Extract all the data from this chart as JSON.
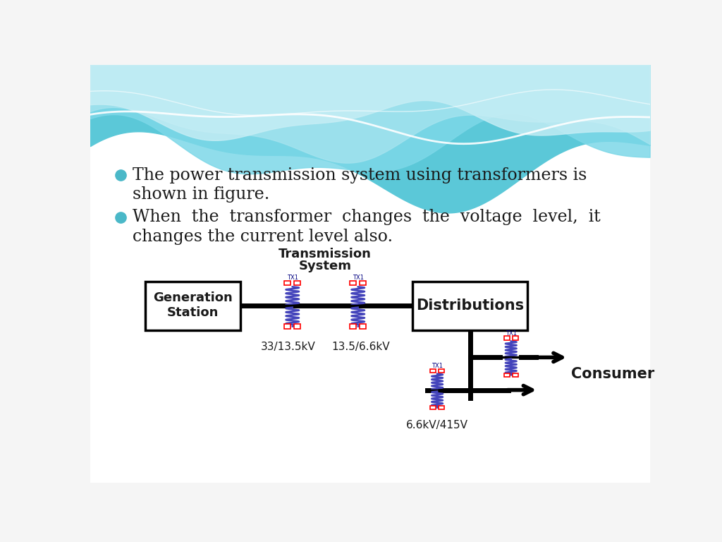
{
  "bg_color": "#f5f5f5",
  "wave_color1": "#5bc8d8",
  "wave_color2": "#7dd8e8",
  "wave_color3": "#a8e4ef",
  "wave_color4": "#c8eef5",
  "bullet_color": "#4ab8c8",
  "text_color": "#1a1a1a",
  "bullet1_line1": "The power transmission system using transformers is",
  "bullet1_line2": "shown in figure.",
  "bullet2_line1": "When  the  transformer  changes  the  voltage  level,  it",
  "bullet2_line2": "changes the current level also.",
  "diagram_title_line1": "Transmission",
  "diagram_title_line2": "System",
  "gen_station_line1": "Generation",
  "gen_station_line2": "Station",
  "distributions_label": "Distributions",
  "consumer_label": "Consumer",
  "label_33": "33/13.5kV",
  "label_135": "13.5/6.6kV",
  "label_66": "6.6kV/415V",
  "transformer_color": "#4444bb",
  "line_color": "#000000",
  "box_color": "#000000"
}
